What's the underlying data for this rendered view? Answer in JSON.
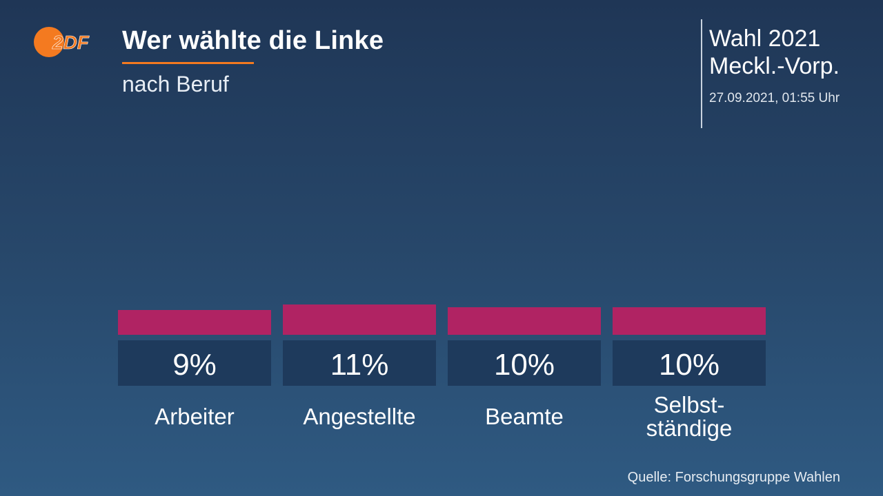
{
  "header": {
    "logo_text": "2DF",
    "title": "Wer wählte die Linke",
    "subtitle": "nach Beruf"
  },
  "info": {
    "election_line1": "Wahl 2021",
    "election_line2": "Meckl.-Vorp.",
    "timestamp": "27.09.2021, 01:55 Uhr"
  },
  "footer": {
    "source": "Quelle: Forschungsgruppe Wahlen"
  },
  "colors": {
    "bar": "#b02363",
    "value_box": "#1e3a5c",
    "accent": "#f47a20"
  },
  "chart_data": {
    "type": "bar",
    "title": "Wer wählte die Linke",
    "subtitle": "nach Beruf",
    "unit": "%",
    "categories": [
      [
        "Arbeiter"
      ],
      [
        "Angestellte"
      ],
      [
        "Beamte"
      ],
      [
        "Selbst-",
        "ständige"
      ]
    ],
    "values": [
      9,
      11,
      10,
      10
    ],
    "value_labels": [
      "9%",
      "11%",
      "10%",
      "10%"
    ]
  }
}
